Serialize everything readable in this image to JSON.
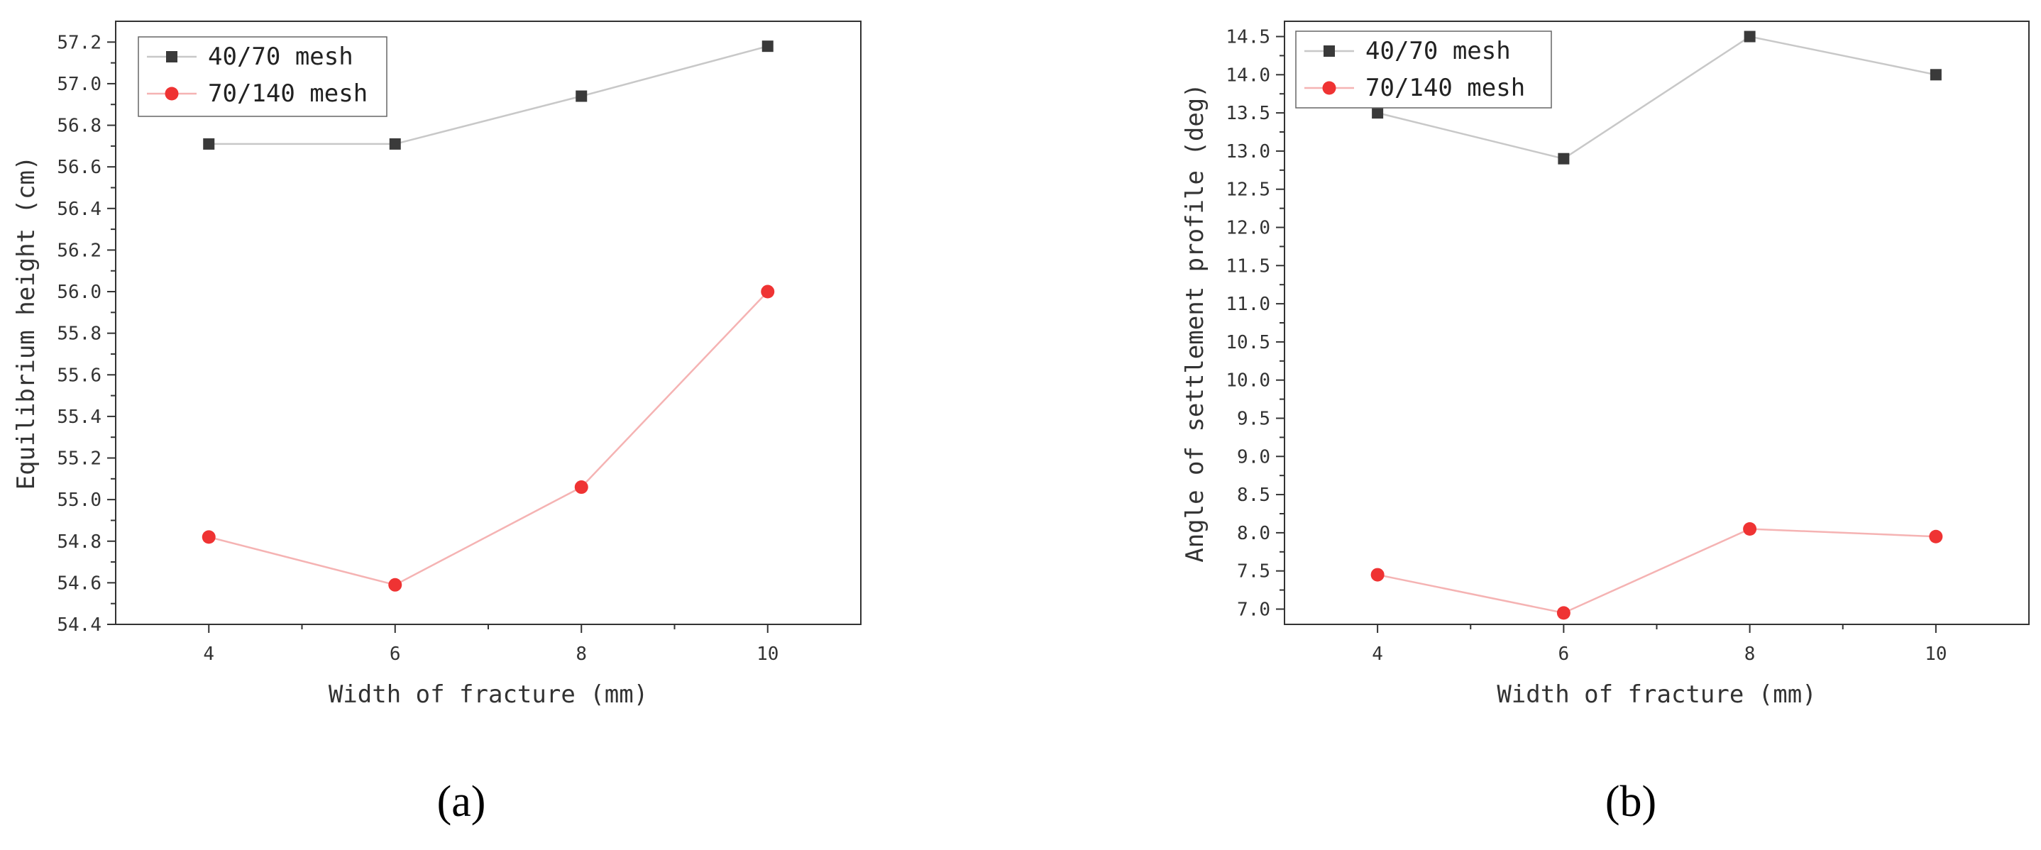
{
  "chart_data": [
    {
      "type": "line",
      "panel_label": "(a)",
      "xlabel": "Width of fracture (mm)",
      "ylabel": "Equilibrium height (cm)",
      "x": [
        4,
        6,
        8,
        10
      ],
      "xticks": [
        4,
        6,
        8,
        10
      ],
      "xlim": [
        3,
        11
      ],
      "ylim": [
        54.4,
        57.3
      ],
      "yticks": [
        54.4,
        54.6,
        54.8,
        55.0,
        55.2,
        55.4,
        55.6,
        55.8,
        56.0,
        56.2,
        56.4,
        56.6,
        56.8,
        57.0,
        57.2
      ],
      "tick_decimals": 1,
      "grid": false,
      "legend_position": "top-left",
      "series": [
        {
          "name": "40/70 mesh",
          "values": [
            56.71,
            56.71,
            56.94,
            57.18
          ],
          "marker": "square",
          "marker_color": "#3a3a3a",
          "line_color": "#c8c8c8"
        },
        {
          "name": "70/140 mesh",
          "values": [
            54.82,
            54.59,
            55.06,
            56.0
          ],
          "marker": "circle",
          "marker_color": "#ef3333",
          "line_color": "#f5b3b3"
        }
      ]
    },
    {
      "type": "line",
      "panel_label": "(b)",
      "xlabel": "Width of fracture (mm)",
      "ylabel": "Angle of settlement profile (deg)",
      "x": [
        4,
        6,
        8,
        10
      ],
      "xticks": [
        4,
        6,
        8,
        10
      ],
      "xlim": [
        3,
        11
      ],
      "ylim": [
        6.8,
        14.7
      ],
      "yticks": [
        7.0,
        7.5,
        8.0,
        8.5,
        9.0,
        9.5,
        10.0,
        10.5,
        11.0,
        11.5,
        12.0,
        12.5,
        13.0,
        13.5,
        14.0,
        14.5
      ],
      "tick_decimals": 1,
      "grid": false,
      "legend_position": "top-left",
      "series": [
        {
          "name": "40/70 mesh",
          "values": [
            13.5,
            12.9,
            14.5,
            14.0
          ],
          "marker": "square",
          "marker_color": "#3a3a3a",
          "line_color": "#c8c8c8"
        },
        {
          "name": "70/140 mesh",
          "values": [
            7.45,
            6.95,
            8.05,
            7.95
          ],
          "marker": "circle",
          "marker_color": "#ef3333",
          "line_color": "#f5b3b3"
        }
      ]
    }
  ]
}
